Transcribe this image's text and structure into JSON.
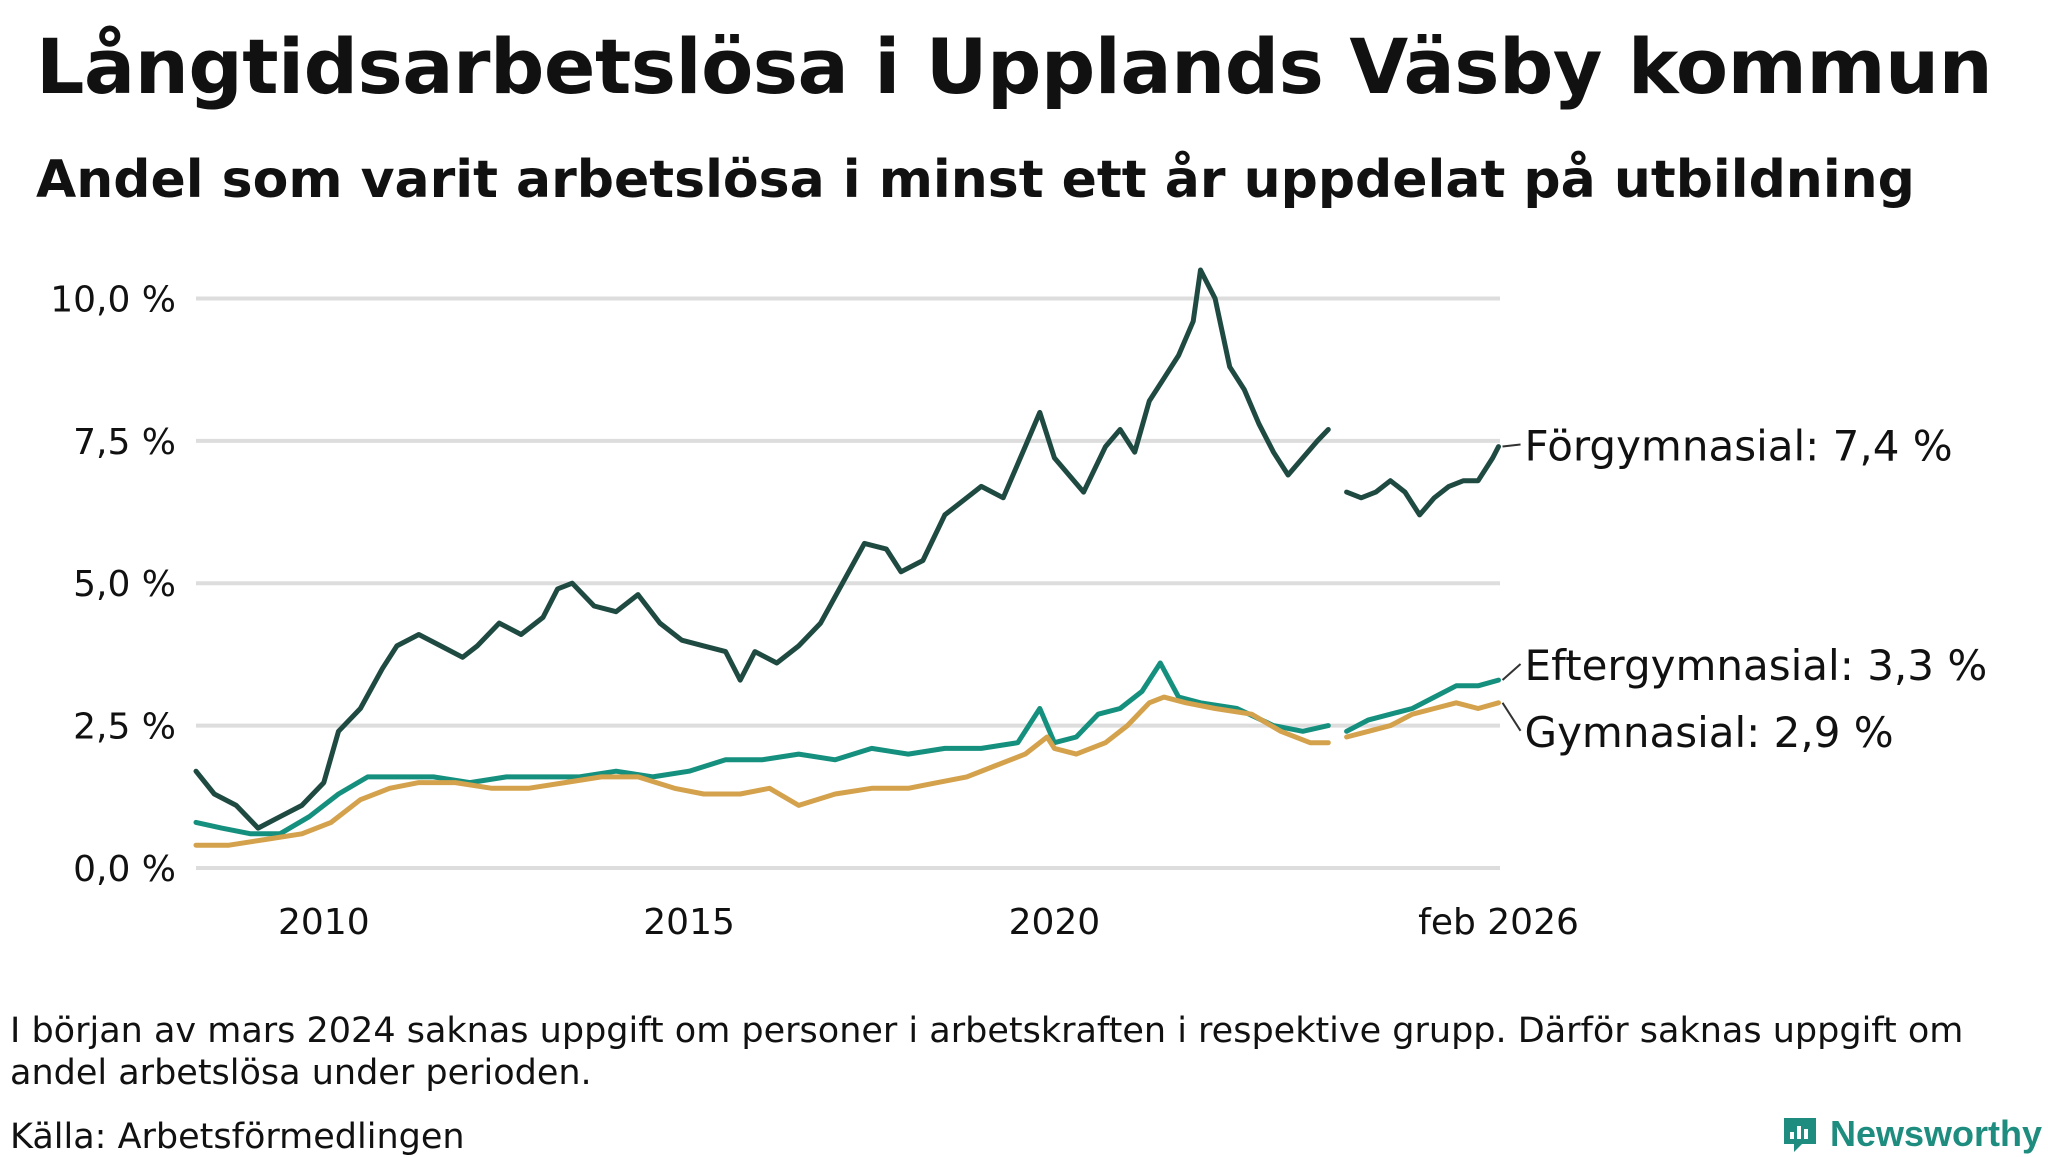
{
  "header": {
    "title": "Långtidsarbetslösa i Upplands Väsby kommun",
    "subtitle": "Andel som varit arbetslösa i minst ett år uppdelat på utbildning"
  },
  "footer": {
    "note": "I början av mars 2024 saknas uppgift om personer i arbetskraften i respektive grupp. Därför saknas uppgift om andel arbetslösa under perioden.",
    "source": "Källa: Arbetsförmedlingen",
    "brand": "Newsworthy"
  },
  "colors": {
    "forgymnasial": "#1f4a42",
    "eftergymnasial": "#16907e",
    "gymnasial": "#d4a24c",
    "grid": "#dddddd",
    "brand": "#1e8c7e"
  },
  "chart_data": {
    "type": "line",
    "title": "Långtidsarbetslösa i Upplands Väsby kommun",
    "subtitle": "Andel som varit arbetslösa i minst ett år uppdelat på utbildning",
    "xlabel": "",
    "ylabel": "",
    "xlim": [
      2008.25,
      2026.1
    ],
    "ylim": [
      0,
      10.5
    ],
    "grid": true,
    "y_ticks": [
      0,
      2.5,
      5.0,
      7.5,
      10.0
    ],
    "y_tick_labels": [
      "0,0 %",
      "2,5 %",
      "5,0 %",
      "7,5 %",
      "10,0 %"
    ],
    "x_ticks": [
      2010,
      2015,
      2020,
      2026.08
    ],
    "x_tick_labels": [
      "2010",
      "2015",
      "2020",
      "feb 2026"
    ],
    "gap": {
      "from": 2023.75,
      "to": 2024.0,
      "description": "saknas uppgift"
    },
    "series": [
      {
        "name": "Förgymnasial",
        "end_label": "Förgymnasial: 7,4 %",
        "color": "#1f4a42",
        "segments": [
          [
            [
              2008.25,
              1.7
            ],
            [
              2008.5,
              1.3
            ],
            [
              2008.8,
              1.1
            ],
            [
              2009.1,
              0.7
            ],
            [
              2009.4,
              0.9
            ],
            [
              2009.7,
              1.1
            ],
            [
              2010.0,
              1.5
            ],
            [
              2010.2,
              2.4
            ],
            [
              2010.5,
              2.8
            ],
            [
              2010.8,
              3.5
            ],
            [
              2011.0,
              3.9
            ],
            [
              2011.3,
              4.1
            ],
            [
              2011.6,
              3.9
            ],
            [
              2011.9,
              3.7
            ],
            [
              2012.1,
              3.9
            ],
            [
              2012.4,
              4.3
            ],
            [
              2012.7,
              4.1
            ],
            [
              2013.0,
              4.4
            ],
            [
              2013.2,
              4.9
            ],
            [
              2013.4,
              5.0
            ],
            [
              2013.7,
              4.6
            ],
            [
              2014.0,
              4.5
            ],
            [
              2014.3,
              4.8
            ],
            [
              2014.6,
              4.3
            ],
            [
              2014.9,
              4.0
            ],
            [
              2015.2,
              3.9
            ],
            [
              2015.5,
              3.8
            ],
            [
              2015.7,
              3.3
            ],
            [
              2015.9,
              3.8
            ],
            [
              2016.2,
              3.6
            ],
            [
              2016.5,
              3.9
            ],
            [
              2016.8,
              4.3
            ],
            [
              2017.1,
              5.0
            ],
            [
              2017.4,
              5.7
            ],
            [
              2017.7,
              5.6
            ],
            [
              2017.9,
              5.2
            ],
            [
              2018.2,
              5.4
            ],
            [
              2018.5,
              6.2
            ],
            [
              2018.8,
              6.5
            ],
            [
              2019.0,
              6.7
            ],
            [
              2019.3,
              6.5
            ],
            [
              2019.6,
              7.4
            ],
            [
              2019.8,
              8.0
            ],
            [
              2020.0,
              7.2
            ],
            [
              2020.2,
              6.9
            ],
            [
              2020.4,
              6.6
            ],
            [
              2020.7,
              7.4
            ],
            [
              2020.9,
              7.7
            ],
            [
              2021.1,
              7.3
            ],
            [
              2021.3,
              8.2
            ],
            [
              2021.5,
              8.6
            ],
            [
              2021.7,
              9.0
            ],
            [
              2021.9,
              9.6
            ],
            [
              2022.0,
              10.5
            ],
            [
              2022.2,
              10.0
            ],
            [
              2022.4,
              8.8
            ],
            [
              2022.6,
              8.4
            ],
            [
              2022.8,
              7.8
            ],
            [
              2023.0,
              7.3
            ],
            [
              2023.2,
              6.9
            ],
            [
              2023.4,
              7.2
            ],
            [
              2023.6,
              7.5
            ],
            [
              2023.75,
              7.7
            ]
          ],
          [
            [
              2024.0,
              6.6
            ],
            [
              2024.2,
              6.5
            ],
            [
              2024.4,
              6.6
            ],
            [
              2024.6,
              6.8
            ],
            [
              2024.8,
              6.6
            ],
            [
              2025.0,
              6.2
            ],
            [
              2025.2,
              6.5
            ],
            [
              2025.4,
              6.7
            ],
            [
              2025.6,
              6.8
            ],
            [
              2025.8,
              6.8
            ],
            [
              2026.0,
              7.2
            ],
            [
              2026.08,
              7.4
            ]
          ]
        ]
      },
      {
        "name": "Eftergymnasial",
        "end_label": "Eftergymnasial: 3,3 %",
        "color": "#16907e",
        "segments": [
          [
            [
              2008.25,
              0.8
            ],
            [
              2008.6,
              0.7
            ],
            [
              2009.0,
              0.6
            ],
            [
              2009.4,
              0.6
            ],
            [
              2009.8,
              0.9
            ],
            [
              2010.2,
              1.3
            ],
            [
              2010.6,
              1.6
            ],
            [
              2011.0,
              1.6
            ],
            [
              2011.5,
              1.6
            ],
            [
              2012.0,
              1.5
            ],
            [
              2012.5,
              1.6
            ],
            [
              2013.0,
              1.6
            ],
            [
              2013.5,
              1.6
            ],
            [
              2014.0,
              1.7
            ],
            [
              2014.5,
              1.6
            ],
            [
              2015.0,
              1.7
            ],
            [
              2015.5,
              1.9
            ],
            [
              2016.0,
              1.9
            ],
            [
              2016.5,
              2.0
            ],
            [
              2017.0,
              1.9
            ],
            [
              2017.5,
              2.1
            ],
            [
              2018.0,
              2.0
            ],
            [
              2018.5,
              2.1
            ],
            [
              2019.0,
              2.1
            ],
            [
              2019.5,
              2.2
            ],
            [
              2019.8,
              2.8
            ],
            [
              2020.0,
              2.2
            ],
            [
              2020.3,
              2.3
            ],
            [
              2020.6,
              2.7
            ],
            [
              2020.9,
              2.8
            ],
            [
              2021.2,
              3.1
            ],
            [
              2021.45,
              3.6
            ],
            [
              2021.7,
              3.0
            ],
            [
              2022.0,
              2.9
            ],
            [
              2022.5,
              2.8
            ],
            [
              2023.0,
              2.5
            ],
            [
              2023.4,
              2.4
            ],
            [
              2023.75,
              2.5
            ]
          ],
          [
            [
              2024.0,
              2.4
            ],
            [
              2024.3,
              2.6
            ],
            [
              2024.6,
              2.7
            ],
            [
              2024.9,
              2.8
            ],
            [
              2025.2,
              3.0
            ],
            [
              2025.5,
              3.2
            ],
            [
              2025.8,
              3.2
            ],
            [
              2026.08,
              3.3
            ]
          ]
        ]
      },
      {
        "name": "Gymnasial",
        "end_label": "Gymnasial: 2,9 %",
        "color": "#d4a24c",
        "segments": [
          [
            [
              2008.25,
              0.4
            ],
            [
              2008.7,
              0.4
            ],
            [
              2009.2,
              0.5
            ],
            [
              2009.7,
              0.6
            ],
            [
              2010.1,
              0.8
            ],
            [
              2010.5,
              1.2
            ],
            [
              2010.9,
              1.4
            ],
            [
              2011.3,
              1.5
            ],
            [
              2011.8,
              1.5
            ],
            [
              2012.3,
              1.4
            ],
            [
              2012.8,
              1.4
            ],
            [
              2013.3,
              1.5
            ],
            [
              2013.8,
              1.6
            ],
            [
              2014.3,
              1.6
            ],
            [
              2014.8,
              1.4
            ],
            [
              2015.2,
              1.3
            ],
            [
              2015.7,
              1.3
            ],
            [
              2016.1,
              1.4
            ],
            [
              2016.5,
              1.1
            ],
            [
              2017.0,
              1.3
            ],
            [
              2017.5,
              1.4
            ],
            [
              2018.0,
              1.4
            ],
            [
              2018.4,
              1.5
            ],
            [
              2018.8,
              1.6
            ],
            [
              2019.2,
              1.8
            ],
            [
              2019.6,
              2.0
            ],
            [
              2019.9,
              2.3
            ],
            [
              2020.0,
              2.1
            ],
            [
              2020.3,
              2.0
            ],
            [
              2020.7,
              2.2
            ],
            [
              2021.0,
              2.5
            ],
            [
              2021.3,
              2.9
            ],
            [
              2021.5,
              3.0
            ],
            [
              2021.8,
              2.9
            ],
            [
              2022.2,
              2.8
            ],
            [
              2022.7,
              2.7
            ],
            [
              2023.1,
              2.4
            ],
            [
              2023.5,
              2.2
            ],
            [
              2023.75,
              2.2
            ]
          ],
          [
            [
              2024.0,
              2.3
            ],
            [
              2024.3,
              2.4
            ],
            [
              2024.6,
              2.5
            ],
            [
              2024.9,
              2.7
            ],
            [
              2025.2,
              2.8
            ],
            [
              2025.5,
              2.9
            ],
            [
              2025.8,
              2.8
            ],
            [
              2026.08,
              2.9
            ]
          ]
        ]
      }
    ]
  }
}
